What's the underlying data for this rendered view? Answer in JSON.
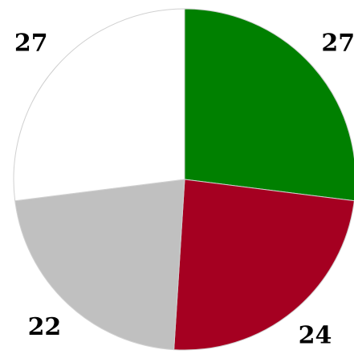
{
  "chart_data": {
    "type": "pie",
    "values": [
      27,
      24,
      22,
      27
    ],
    "colors": [
      "#008000",
      "#a50021",
      "#c0c0c0",
      "#ffffff"
    ]
  }
}
